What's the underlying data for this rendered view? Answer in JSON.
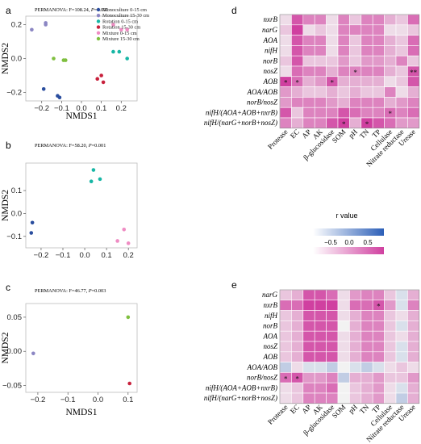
{
  "panels": {
    "a": {
      "letter": "a",
      "stat_prefix": "PERMANOVA: F=108.24, ",
      "stat_p": "P",
      "stat_suffix": "=0.001"
    },
    "b": {
      "letter": "b",
      "stat_prefix": "PERMANOVA: F=58.20, ",
      "stat_p": "P",
      "stat_suffix": "=0.001"
    },
    "c": {
      "letter": "c",
      "stat_prefix": "PERMANOVA: F=46.77, ",
      "stat_p": "P",
      "stat_suffix": "=0.003"
    },
    "d": {
      "letter": "d"
    },
    "e": {
      "letter": "e"
    }
  },
  "legend_scale": {
    "title": "r value",
    "ticks": [
      "−0.5",
      "0.0",
      "0.5"
    ]
  },
  "chart_data": [
    {
      "type": "scatter",
      "panel": "a",
      "xlabel": "NMDS1",
      "ylabel": "NMDS2",
      "xlim": [
        -0.28,
        0.28
      ],
      "ylim": [
        -0.25,
        0.25
      ],
      "xticks": [
        -0.2,
        -0.1,
        0.0,
        0.1,
        0.2
      ],
      "xtick_labels": [
        "−0.2",
        "−0.1",
        "0.0",
        "0.1",
        "0.2"
      ],
      "yticks": [
        -0.2,
        0.0,
        0.2
      ],
      "ytick_labels": [
        "−0.2",
        "0.0",
        "0.2"
      ],
      "legend": "top-right",
      "series": [
        {
          "name": "Monoculture 0-15 cm",
          "color": "#2a4d9e",
          "points": [
            [
              -0.19,
              -0.18
            ],
            [
              -0.12,
              -0.22
            ],
            [
              -0.11,
              -0.23
            ]
          ]
        },
        {
          "name": "Monoculture 15-30 cm",
          "color": "#8b86c3",
          "points": [
            [
              -0.25,
              0.17
            ],
            [
              -0.18,
              0.21
            ],
            [
              -0.18,
              0.2
            ]
          ]
        },
        {
          "name": "Rotation 0-15 cm",
          "color": "#17b6a5",
          "points": [
            [
              0.16,
              0.04
            ],
            [
              0.19,
              0.04
            ],
            [
              0.23,
              0.0
            ]
          ]
        },
        {
          "name": "Rotation 15-30 cm",
          "color": "#c8213c",
          "points": [
            [
              0.08,
              -0.12
            ],
            [
              0.1,
              -0.1
            ],
            [
              0.11,
              -0.14
            ]
          ]
        },
        {
          "name": "Mixture 0-15 cm",
          "color": "#ef8cc3",
          "points": [
            [
              0.16,
              0.2
            ],
            [
              0.2,
              0.17
            ],
            [
              0.23,
              0.17
            ]
          ]
        },
        {
          "name": "Mixture 15-30 cm",
          "color": "#7fbf3f",
          "points": [
            [
              -0.14,
              0.0
            ],
            [
              -0.09,
              -0.01
            ],
            [
              -0.08,
              -0.01
            ]
          ]
        }
      ]
    },
    {
      "type": "scatter",
      "panel": "b",
      "xlabel": "",
      "ylabel": "NMDS2",
      "xlim": [
        -0.27,
        0.24
      ],
      "ylim": [
        -0.15,
        0.22
      ],
      "xticks": [
        -0.2,
        -0.1,
        0.0,
        0.1,
        0.2
      ],
      "xtick_labels": [
        "−0.2",
        "−0.1",
        "0.0",
        "0.1",
        "0.2"
      ],
      "yticks": [
        -0.1,
        0.0,
        0.1
      ],
      "ytick_labels": [
        "−0.1",
        "0.0",
        "0.1"
      ],
      "series": [
        {
          "name": "Monoculture 0-15 cm",
          "color": "#2a4d9e",
          "points": [
            [
              -0.24,
              -0.04
            ],
            [
              -0.245,
              -0.085
            ]
          ]
        },
        {
          "name": "Rotation 0-15 cm",
          "color": "#17b6a5",
          "points": [
            [
              0.03,
              0.14
            ],
            [
              0.04,
              0.19
            ],
            [
              0.07,
              0.15
            ]
          ]
        },
        {
          "name": "Mixture 0-15 cm",
          "color": "#ef8cc3",
          "points": [
            [
              0.15,
              -0.12
            ],
            [
              0.18,
              -0.07
            ],
            [
              0.2,
              -0.13
            ]
          ]
        }
      ]
    },
    {
      "type": "scatter",
      "panel": "c",
      "xlabel": "NMDS1",
      "ylabel": "NMDS2",
      "xlim": [
        -0.24,
        0.13
      ],
      "ylim": [
        -0.06,
        0.07
      ],
      "xticks": [
        -0.2,
        -0.1,
        0.0,
        0.1
      ],
      "xtick_labels": [
        "−0.2",
        "−0.1",
        "0.0",
        "0.1"
      ],
      "yticks": [
        -0.05,
        0.0,
        0.05
      ],
      "ytick_labels": [
        "−0.05",
        "0.00",
        "0.05"
      ],
      "series": [
        {
          "name": "Monoculture 15-30 cm",
          "color": "#8b86c3",
          "points": [
            [
              -0.215,
              -0.003
            ]
          ]
        },
        {
          "name": "Mixture 15-30 cm",
          "color": "#7fbf3f",
          "points": [
            [
              0.1,
              0.05
            ]
          ]
        },
        {
          "name": "Rotation 15-30 cm",
          "color": "#c8213c",
          "points": [
            [
              0.105,
              -0.047
            ]
          ]
        }
      ]
    },
    {
      "type": "heatmap",
      "panel": "d",
      "rows": [
        "nxrB",
        "narG",
        "AOA",
        "nifH",
        "norB",
        "nosZ",
        "AOB",
        "AOA/AOB",
        "norB/nosZ",
        "nifH/(AOA+AOB+nxrB)",
        "nifH/(narG+norB+nosZ)"
      ],
      "columns": [
        "Protease",
        "EC",
        "AP",
        "AK",
        "β-glucosidase",
        "SOM",
        "pH",
        "TN",
        "TP",
        "Cellulase",
        "Nitrate reductase",
        "Urease"
      ],
      "values": [
        [
          0.1,
          0.7,
          0.5,
          0.5,
          0.1,
          0.5,
          0.2,
          0.5,
          0.5,
          0.3,
          0.2,
          0.6
        ],
        [
          0.2,
          0.8,
          0.1,
          0.2,
          0.1,
          0.5,
          0.5,
          0.5,
          0.5,
          0.1,
          0.1,
          0.2
        ],
        [
          0.1,
          0.7,
          0.5,
          0.5,
          0.1,
          0.5,
          0.2,
          0.5,
          0.5,
          0.3,
          0.2,
          0.6
        ],
        [
          0.1,
          0.7,
          0.5,
          0.5,
          0.1,
          0.5,
          0.2,
          0.5,
          0.5,
          0.3,
          0.2,
          0.6
        ],
        [
          0.2,
          0.7,
          0.2,
          0.2,
          0.2,
          0.4,
          0.2,
          0.4,
          0.4,
          0.3,
          0.5,
          0.2
        ],
        [
          0.1,
          0.6,
          0.5,
          0.5,
          0.3,
          0.5,
          0.5,
          0.5,
          0.5,
          0.3,
          0.2,
          0.7
        ],
        [
          0.8,
          0.6,
          0.3,
          0.4,
          0.7,
          0.3,
          0.3,
          0.3,
          0.3,
          0.1,
          0.2,
          0.7
        ],
        [
          0.4,
          0.3,
          0.2,
          0.2,
          0.3,
          0.2,
          0.3,
          0.2,
          0.2,
          0.5,
          0.1,
          0.3
        ],
        [
          0.4,
          0.5,
          0.5,
          0.5,
          0.4,
          0.3,
          0.5,
          0.5,
          0.5,
          0.3,
          0.4,
          0.5
        ],
        [
          0.7,
          0.2,
          0.5,
          0.5,
          0.5,
          0.7,
          0.6,
          0.5,
          0.5,
          0.6,
          0.5,
          0.6
        ],
        [
          0.5,
          0.3,
          0.5,
          0.5,
          0.7,
          0.8,
          0.3,
          0.8,
          0.7,
          0.6,
          0.4,
          0.4
        ]
      ],
      "significance": [
        {
          "row": 5,
          "col": 6,
          "mark": "*"
        },
        {
          "row": 5,
          "col": 11,
          "mark": "**"
        },
        {
          "row": 6,
          "col": 0,
          "mark": "*"
        },
        {
          "row": 6,
          "col": 1,
          "mark": "*"
        },
        {
          "row": 6,
          "col": 4,
          "mark": "*"
        },
        {
          "row": 9,
          "col": 9,
          "mark": "*"
        },
        {
          "row": 10,
          "col": 5,
          "mark": "*"
        },
        {
          "row": 10,
          "col": 7,
          "mark": "*"
        }
      ],
      "color_scale": {
        "min": -0.8,
        "max": 0.8,
        "negative": "#2c5fb8",
        "zero": "#f2f2f2",
        "positive": "#d040a0"
      }
    },
    {
      "type": "heatmap",
      "panel": "e",
      "rows": [
        "narG",
        "nxrB",
        "nifH",
        "norB",
        "AOA",
        "nosZ",
        "AOB",
        "AOA/AOB",
        "norB/nosZ",
        "nifH/(AOA+AOB+nxrB)",
        "nifH/(narG+norB+nosZ)"
      ],
      "columns": [
        "Protease",
        "EC",
        "AP",
        "AK",
        "β-glucosidase",
        "SOM",
        "pH",
        "TN",
        "TP",
        "Cellulase",
        "Nitrate reductase",
        "Urease"
      ],
      "values": [
        [
          0.2,
          0.3,
          0.7,
          0.7,
          0.6,
          0.1,
          0.4,
          0.5,
          0.5,
          0.2,
          -0.1,
          0.3
        ],
        [
          0.6,
          0.6,
          0.8,
          0.8,
          0.8,
          0.1,
          0.6,
          0.6,
          0.7,
          0.4,
          -0.1,
          0.5
        ],
        [
          0.2,
          0.3,
          0.7,
          0.7,
          0.7,
          0.1,
          0.3,
          0.5,
          0.5,
          0.2,
          0.1,
          0.3
        ],
        [
          0.2,
          0.3,
          0.7,
          0.7,
          0.7,
          0.0,
          0.3,
          0.5,
          0.5,
          0.2,
          -0.1,
          0.3
        ],
        [
          0.2,
          0.3,
          0.7,
          0.7,
          0.7,
          0.1,
          0.3,
          0.5,
          0.5,
          0.2,
          0.1,
          0.3
        ],
        [
          0.2,
          0.3,
          0.7,
          0.7,
          0.7,
          0.1,
          0.3,
          0.5,
          0.5,
          0.2,
          -0.1,
          0.3
        ],
        [
          0.2,
          0.3,
          0.7,
          0.7,
          0.7,
          0.1,
          0.3,
          0.5,
          0.5,
          0.2,
          -0.1,
          0.3
        ],
        [
          -0.2,
          0.1,
          -0.1,
          -0.1,
          -0.2,
          0.0,
          -0.1,
          -0.2,
          -0.1,
          0.1,
          0.2,
          0.1
        ],
        [
          0.6,
          0.7,
          0.4,
          0.4,
          0.5,
          -0.2,
          0.3,
          0.3,
          0.4,
          0.2,
          0.2,
          0.4
        ],
        [
          0.1,
          0.2,
          0.5,
          0.5,
          0.6,
          0.0,
          0.2,
          0.3,
          0.4,
          0.1,
          -0.1,
          0.3
        ],
        [
          0.1,
          0.2,
          0.5,
          0.5,
          0.5,
          0.0,
          0.2,
          0.3,
          0.4,
          0.1,
          -0.2,
          0.3
        ]
      ],
      "significance": [
        {
          "row": 1,
          "col": 8,
          "mark": "*"
        },
        {
          "row": 8,
          "col": 0,
          "mark": "*"
        },
        {
          "row": 8,
          "col": 1,
          "mark": "*"
        }
      ],
      "color_scale": {
        "min": -0.8,
        "max": 0.8,
        "negative": "#2c5fb8",
        "zero": "#f2f2f2",
        "positive": "#d040a0"
      }
    }
  ]
}
